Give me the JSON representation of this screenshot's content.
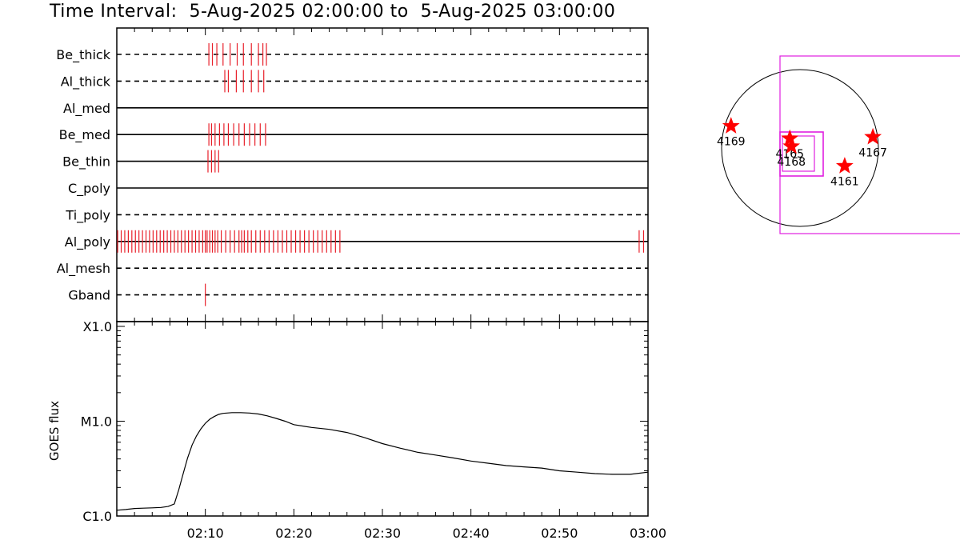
{
  "title": "Time Interval:  5-Aug-2025 02:00:00 to  5-Aug-2025 03:00:00",
  "colors": {
    "events": "#e8202a",
    "goes": "#000000",
    "fov": "#e020e0",
    "star": "#ff0000"
  },
  "chart_data": [
    {
      "type": "timeline",
      "x_range_minutes": [
        0,
        60
      ],
      "rows": [
        {
          "name": "Be_thick",
          "line": "dashed",
          "events": [
            10.4,
            10.8,
            11.3,
            12.0,
            12.8,
            13.6,
            14.3,
            15.2,
            16.0,
            16.5,
            16.9
          ]
        },
        {
          "name": "Al_thick",
          "line": "dashed",
          "events": [
            12.2,
            12.6,
            13.5,
            14.3,
            15.2,
            16.0,
            16.6
          ]
        },
        {
          "name": "Al_med",
          "line": "solid",
          "events": []
        },
        {
          "name": "Be_med",
          "line": "solid",
          "events": [
            10.4,
            10.7,
            11.1,
            11.6,
            12.1,
            12.6,
            13.2,
            13.8,
            14.4,
            15.0,
            15.6,
            16.2,
            16.8
          ]
        },
        {
          "name": "Be_thin",
          "line": "solid",
          "events": [
            10.3,
            10.7,
            11.1,
            11.5
          ]
        },
        {
          "name": "C_poly",
          "line": "solid",
          "events": []
        },
        {
          "name": "Ti_poly",
          "line": "dashed",
          "events": []
        },
        {
          "name": "Al_poly",
          "line": "solid",
          "events": [
            0.1,
            0.5,
            0.9,
            1.3,
            1.7,
            2.1,
            2.5,
            2.9,
            3.3,
            3.7,
            4.1,
            4.5,
            4.9,
            5.3,
            5.7,
            6.1,
            6.5,
            6.9,
            7.3,
            7.7,
            8.1,
            8.5,
            8.9,
            9.3,
            9.7,
            10.0,
            10.2,
            10.5,
            10.8,
            11.1,
            11.4,
            11.8,
            12.3,
            12.8,
            13.3,
            13.8,
            14.1,
            14.4,
            14.8,
            15.2,
            15.7,
            16.2,
            16.7,
            17.2,
            17.7,
            18.2,
            18.7,
            19.2,
            19.7,
            20.2,
            20.7,
            21.2,
            21.7,
            22.2,
            22.7,
            23.2,
            23.7,
            24.2,
            24.7,
            25.2,
            59.0,
            59.5
          ]
        },
        {
          "name": "Al_mesh",
          "line": "dashed",
          "events": []
        },
        {
          "name": "Gband",
          "line": "dashed",
          "events": [
            10.0
          ]
        }
      ]
    },
    {
      "type": "line",
      "ylabel": "GOES flux",
      "yscale": "log",
      "y_tick_labels": [
        "C1.0",
        "M1.0",
        "X1.0"
      ],
      "y_tick_values": [
        1e-06,
        1e-05,
        0.0001
      ],
      "ylim": [
        1e-06,
        0.0001
      ],
      "x_tick_labels": [
        "02:10",
        "02:20",
        "02:30",
        "02:40",
        "02:50",
        "03:00"
      ],
      "x_tick_minutes": [
        10,
        20,
        30,
        40,
        50,
        60
      ],
      "x_range_minutes": [
        0,
        60
      ],
      "x_minutes": [
        0,
        1,
        2,
        3,
        4,
        5,
        5.8,
        6.5,
        7.0,
        7.5,
        8.0,
        8.5,
        9.0,
        9.5,
        10.0,
        10.5,
        11.0,
        11.5,
        12.0,
        13.0,
        14.0,
        15.0,
        16.0,
        17.0,
        18.0,
        19.0,
        20.0,
        22.0,
        24.0,
        26.0,
        28.0,
        30.0,
        32.0,
        34.0,
        36.0,
        38.0,
        40.0,
        42.0,
        44.0,
        46.0,
        48.0,
        50.0,
        52.0,
        54.0,
        56.0,
        58.0,
        60.0
      ],
      "flux": [
        1.15e-06,
        1.17e-06,
        1.2e-06,
        1.21e-06,
        1.22e-06,
        1.23e-06,
        1.26e-06,
        1.34e-06,
        1.9e-06,
        2.8e-06,
        4.1e-06,
        5.6e-06,
        7e-06,
        8.3e-06,
        9.5e-06,
        1.05e-05,
        1.12e-05,
        1.18e-05,
        1.21e-05,
        1.23e-05,
        1.23e-05,
        1.22e-05,
        1.19e-05,
        1.14e-05,
        1.07e-05,
        1e-05,
        9.2e-06,
        8.6e-06,
        8.2e-06,
        7.6e-06,
        6.7e-06,
        5.8e-06,
        5.2e-06,
        4.7e-06,
        4.4e-06,
        4.1e-06,
        3.8e-06,
        3.6e-06,
        3.4e-06,
        3.3e-06,
        3.2e-06,
        3e-06,
        2.9e-06,
        2.8e-06,
        2.75e-06,
        2.75e-06,
        2.9e-06
      ]
    },
    {
      "type": "map",
      "regions": [
        {
          "id": "4169",
          "lon": -0.88,
          "lat": 0.28
        },
        {
          "id": "4165",
          "lon": -0.13,
          "lat": 0.12
        },
        {
          "id": "4168",
          "lon": -0.11,
          "lat": 0.02
        },
        {
          "id": "4167",
          "lon": 0.93,
          "lat": 0.14
        },
        {
          "id": "4161",
          "lon": 0.57,
          "lat": -0.23
        }
      ]
    }
  ]
}
